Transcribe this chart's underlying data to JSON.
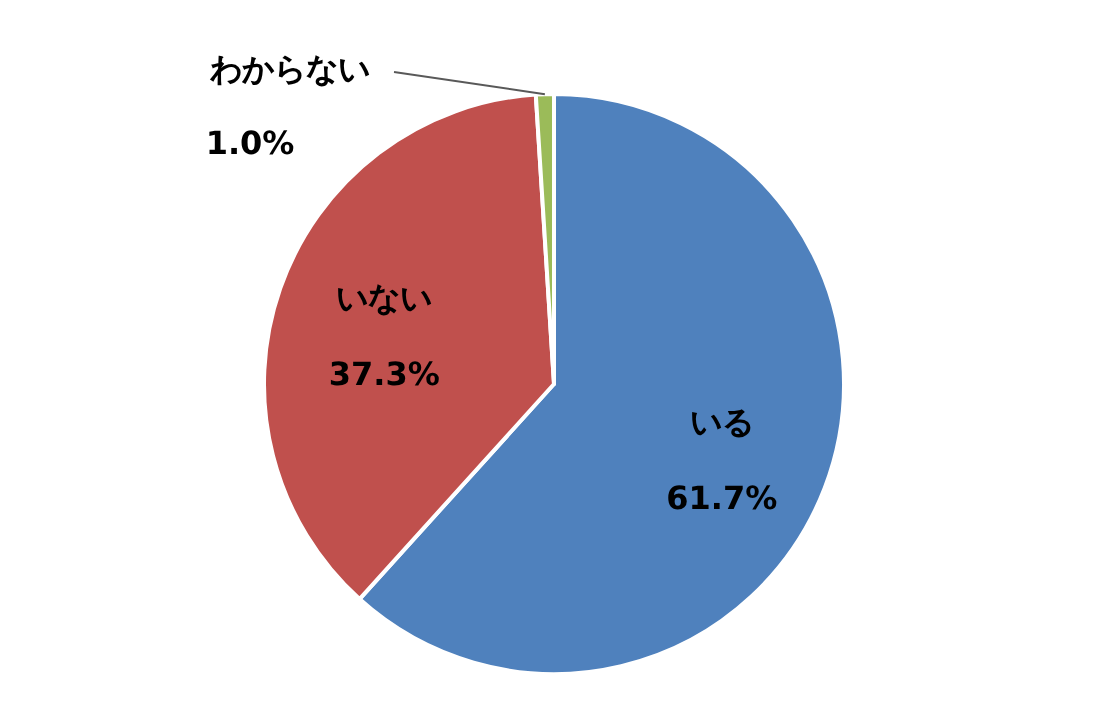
{
  "chart_data": {
    "type": "pie",
    "categories": [
      "いる",
      "いない",
      "わからない"
    ],
    "values": [
      61.7,
      37.3,
      1.0
    ],
    "value_labels": [
      "61.7%",
      "37.3%",
      "1.0%"
    ],
    "colors": [
      "#4f81bd",
      "#c0504d",
      "#9bbb59"
    ]
  }
}
